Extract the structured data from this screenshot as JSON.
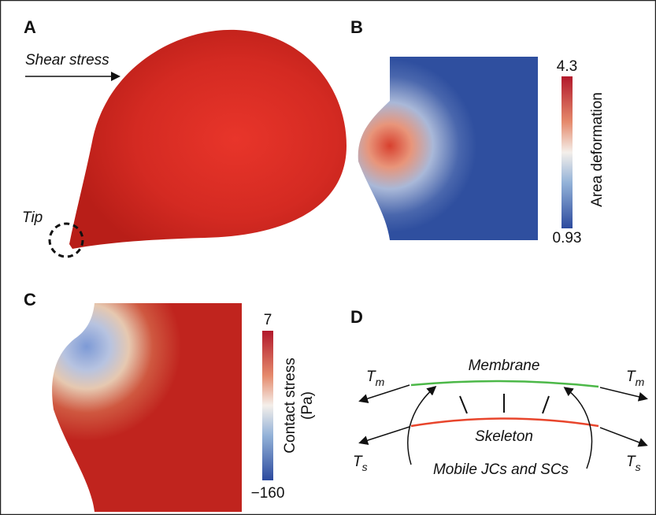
{
  "panels": [
    {
      "label": "A",
      "annotations": {
        "shear": "Shear stress",
        "tip": "Tip"
      }
    },
    {
      "label": "B",
      "colorbar": {
        "title": "Area deformation",
        "max": "4.3",
        "min": "0.93"
      }
    },
    {
      "label": "C",
      "colorbar": {
        "title_lines": [
          "Contact stress",
          "(Pa)"
        ],
        "max": "7",
        "min": "−160"
      }
    },
    {
      "label": "D",
      "labels": {
        "membrane": "Membrane",
        "skeleton": "Skeleton",
        "junctions": "Mobile JCs and SCs",
        "tm": "T",
        "tm_sub": "m",
        "ts": "T",
        "ts_sub": "s"
      }
    }
  ]
}
